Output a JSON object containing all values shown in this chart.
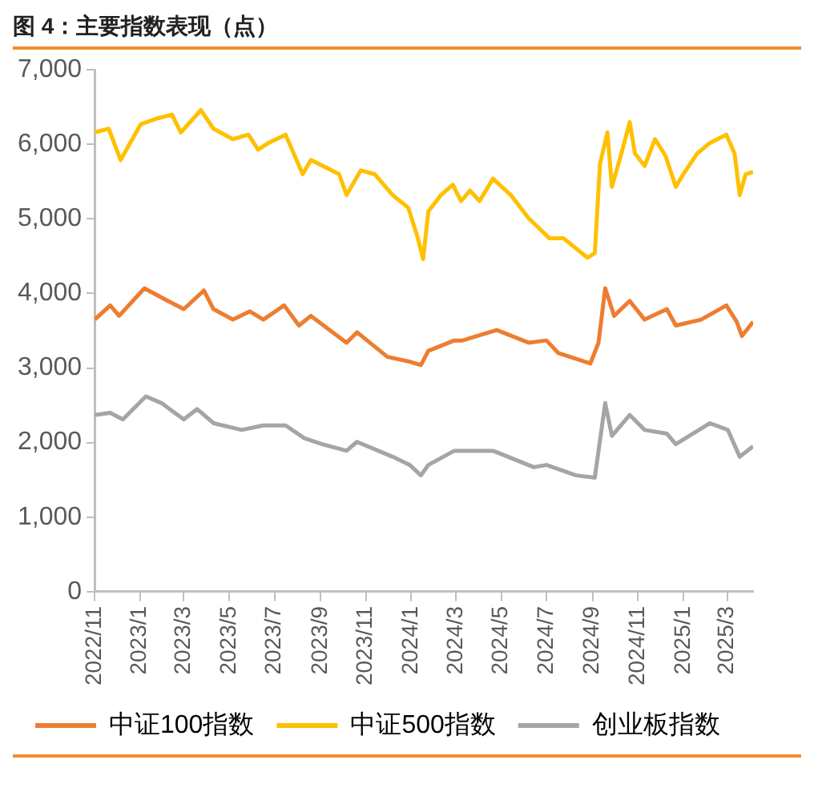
{
  "chart_data": {
    "type": "line",
    "title": "图 4：主要指数表现（点）",
    "xlim": [
      "2022-11-01",
      "2025-04-05"
    ],
    "xticks": [
      {
        "value": "2022-11-01",
        "label": "2022/11"
      },
      {
        "value": "2023-01-01",
        "label": "2023/1"
      },
      {
        "value": "2023-03-01",
        "label": "2023/3"
      },
      {
        "value": "2023-05-01",
        "label": "2023/5"
      },
      {
        "value": "2023-07-01",
        "label": "2023/7"
      },
      {
        "value": "2023-09-01",
        "label": "2023/9"
      },
      {
        "value": "2023-11-01",
        "label": "2023/11"
      },
      {
        "value": "2024-01-01",
        "label": "2024/1"
      },
      {
        "value": "2024-03-01",
        "label": "2024/3"
      },
      {
        "value": "2024-05-01",
        "label": "2024/5"
      },
      {
        "value": "2024-07-01",
        "label": "2024/7"
      },
      {
        "value": "2024-09-01",
        "label": "2024/9"
      },
      {
        "value": "2024-11-01",
        "label": "2024/11"
      },
      {
        "value": "2025-01-01",
        "label": "2025/1"
      },
      {
        "value": "2025-03-01",
        "label": "2025/3"
      }
    ],
    "ylim": [
      0,
      7000
    ],
    "yticks": [
      0,
      {
        "value": 1000,
        "label": "1,000"
      },
      {
        "value": 2000,
        "label": "2,000"
      },
      {
        "value": 3000,
        "label": "3,000"
      },
      {
        "value": 4000,
        "label": "4,000"
      },
      {
        "value": 5000,
        "label": "5,000"
      },
      {
        "value": 6000,
        "label": "6,000"
      },
      {
        "value": 7000,
        "label": "7,000"
      }
    ],
    "grid": false,
    "legend": "bottom",
    "marker": "none",
    "line_style": "solid",
    "series": [
      {
        "name": "中证100指数",
        "color": "#ed7d31",
        "x": [
          "2022-11-01",
          "2022-11-22",
          "2022-12-04",
          "2023-01-07",
          "2023-02-02",
          "2023-03-01",
          "2023-03-28",
          "2023-04-10",
          "2023-05-06",
          "2023-05-29",
          "2023-06-16",
          "2023-07-14",
          "2023-08-03",
          "2023-08-19",
          "2023-10-06",
          "2023-10-20",
          "2023-11-30",
          "2023-12-28",
          "2024-01-14",
          "2024-01-24",
          "2024-02-28",
          "2024-03-10",
          "2024-04-25",
          "2024-06-07",
          "2024-07-01",
          "2024-07-17",
          "2024-08-29",
          "2024-09-09",
          "2024-09-18",
          "2024-09-30",
          "2024-10-21",
          "2024-11-10",
          "2024-12-10",
          "2024-12-22",
          "2025-01-25",
          "2025-02-28",
          "2025-03-14",
          "2025-03-21",
          "2025-04-05"
        ],
        "values": [
          3650,
          3840,
          3700,
          4070,
          3930,
          3790,
          4040,
          3790,
          3650,
          3760,
          3650,
          3840,
          3570,
          3700,
          3340,
          3480,
          3150,
          3090,
          3040,
          3230,
          3370,
          3370,
          3510,
          3340,
          3370,
          3200,
          3060,
          3340,
          4070,
          3700,
          3900,
          3650,
          3790,
          3570,
          3650,
          3840,
          3620,
          3430,
          3620
        ]
      },
      {
        "name": "中证500指数",
        "color": "#ffc000",
        "x": [
          "2022-11-01",
          "2022-11-20",
          "2022-12-06",
          "2023-01-02",
          "2023-01-25",
          "2023-02-13",
          "2023-02-25",
          "2023-03-24",
          "2023-04-10",
          "2023-05-06",
          "2023-05-27",
          "2023-06-09",
          "2023-06-23",
          "2023-07-16",
          "2023-08-08",
          "2023-08-19",
          "2023-09-26",
          "2023-10-06",
          "2023-10-25",
          "2023-11-13",
          "2023-12-07",
          "2023-12-28",
          "2024-01-10",
          "2024-01-17",
          "2024-01-24",
          "2024-02-10",
          "2024-02-26",
          "2024-03-08",
          "2024-03-20",
          "2024-04-02",
          "2024-04-20",
          "2024-05-14",
          "2024-06-07",
          "2024-07-05",
          "2024-07-24",
          "2024-08-25",
          "2024-09-04",
          "2024-09-11",
          "2024-09-21",
          "2024-09-27",
          "2024-10-09",
          "2024-10-21",
          "2024-10-28",
          "2024-11-10",
          "2024-11-24",
          "2024-12-08",
          "2024-12-22",
          "2025-01-01",
          "2025-01-20",
          "2025-02-06",
          "2025-02-28",
          "2025-03-11",
          "2025-03-18",
          "2025-03-26",
          "2025-04-05"
        ],
        "values": [
          6160,
          6210,
          5790,
          6270,
          6350,
          6400,
          6160,
          6460,
          6210,
          6070,
          6130,
          5930,
          6020,
          6130,
          5600,
          5790,
          5600,
          5320,
          5650,
          5600,
          5320,
          5150,
          4740,
          4460,
          5100,
          5320,
          5460,
          5240,
          5380,
          5240,
          5540,
          5320,
          5010,
          4740,
          4740,
          4480,
          4540,
          5740,
          6160,
          5430,
          5850,
          6300,
          5880,
          5710,
          6070,
          5850,
          5430,
          5600,
          5880,
          6020,
          6130,
          5880,
          5320,
          5600,
          5630
        ]
      },
      {
        "name": "创业板指数",
        "color": "#a5a5a5",
        "x": [
          "2022-11-01",
          "2022-11-22",
          "2022-12-09",
          "2023-01-09",
          "2023-01-30",
          "2023-03-01",
          "2023-03-19",
          "2023-04-10",
          "2023-05-18",
          "2023-06-16",
          "2023-07-16",
          "2023-08-10",
          "2023-09-03",
          "2023-10-06",
          "2023-10-20",
          "2023-12-07",
          "2023-12-30",
          "2024-01-14",
          "2024-01-24",
          "2024-02-28",
          "2024-03-10",
          "2024-04-20",
          "2024-06-14",
          "2024-07-01",
          "2024-08-10",
          "2024-09-04",
          "2024-09-18",
          "2024-09-27",
          "2024-10-21",
          "2024-11-10",
          "2024-12-10",
          "2024-12-22",
          "2025-02-06",
          "2025-03-02",
          "2025-03-18",
          "2025-04-05"
        ],
        "values": [
          2370,
          2400,
          2310,
          2620,
          2530,
          2310,
          2450,
          2260,
          2170,
          2230,
          2230,
          2060,
          1980,
          1890,
          2010,
          1810,
          1700,
          1560,
          1700,
          1890,
          1890,
          1890,
          1670,
          1700,
          1560,
          1530,
          2530,
          2090,
          2370,
          2170,
          2120,
          1980,
          2260,
          2170,
          1810,
          1950
        ]
      }
    ]
  }
}
